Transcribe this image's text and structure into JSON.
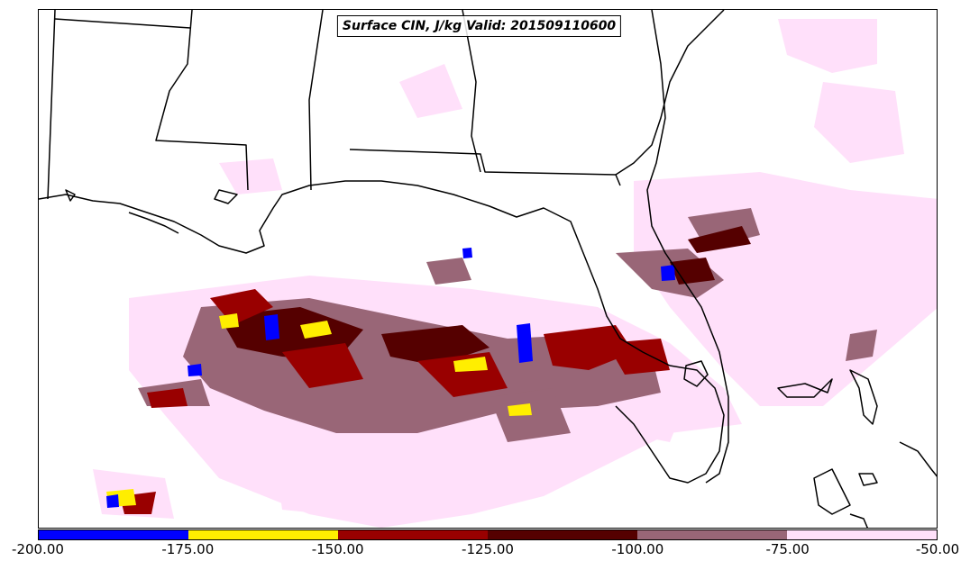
{
  "map": {
    "title": "Surface CIN, J/kg Valid: 201509110600"
  },
  "colorbar": {
    "ticks": [
      "-200.00",
      "-175.00",
      "-150.00",
      "-125.00",
      "-100.00",
      "-75.00",
      "-50.00"
    ],
    "bins": [
      {
        "from": -200,
        "to": -175,
        "color": "#0000ff"
      },
      {
        "from": -175,
        "to": -150,
        "color": "#ffee00"
      },
      {
        "from": -150,
        "to": -125,
        "color": "#990000"
      },
      {
        "from": -125,
        "to": -100,
        "color": "#550000"
      },
      {
        "from": -100,
        "to": -75,
        "color": "#996677"
      },
      {
        "from": -75,
        "to": -50,
        "color": "#ffe0fa"
      }
    ]
  }
}
